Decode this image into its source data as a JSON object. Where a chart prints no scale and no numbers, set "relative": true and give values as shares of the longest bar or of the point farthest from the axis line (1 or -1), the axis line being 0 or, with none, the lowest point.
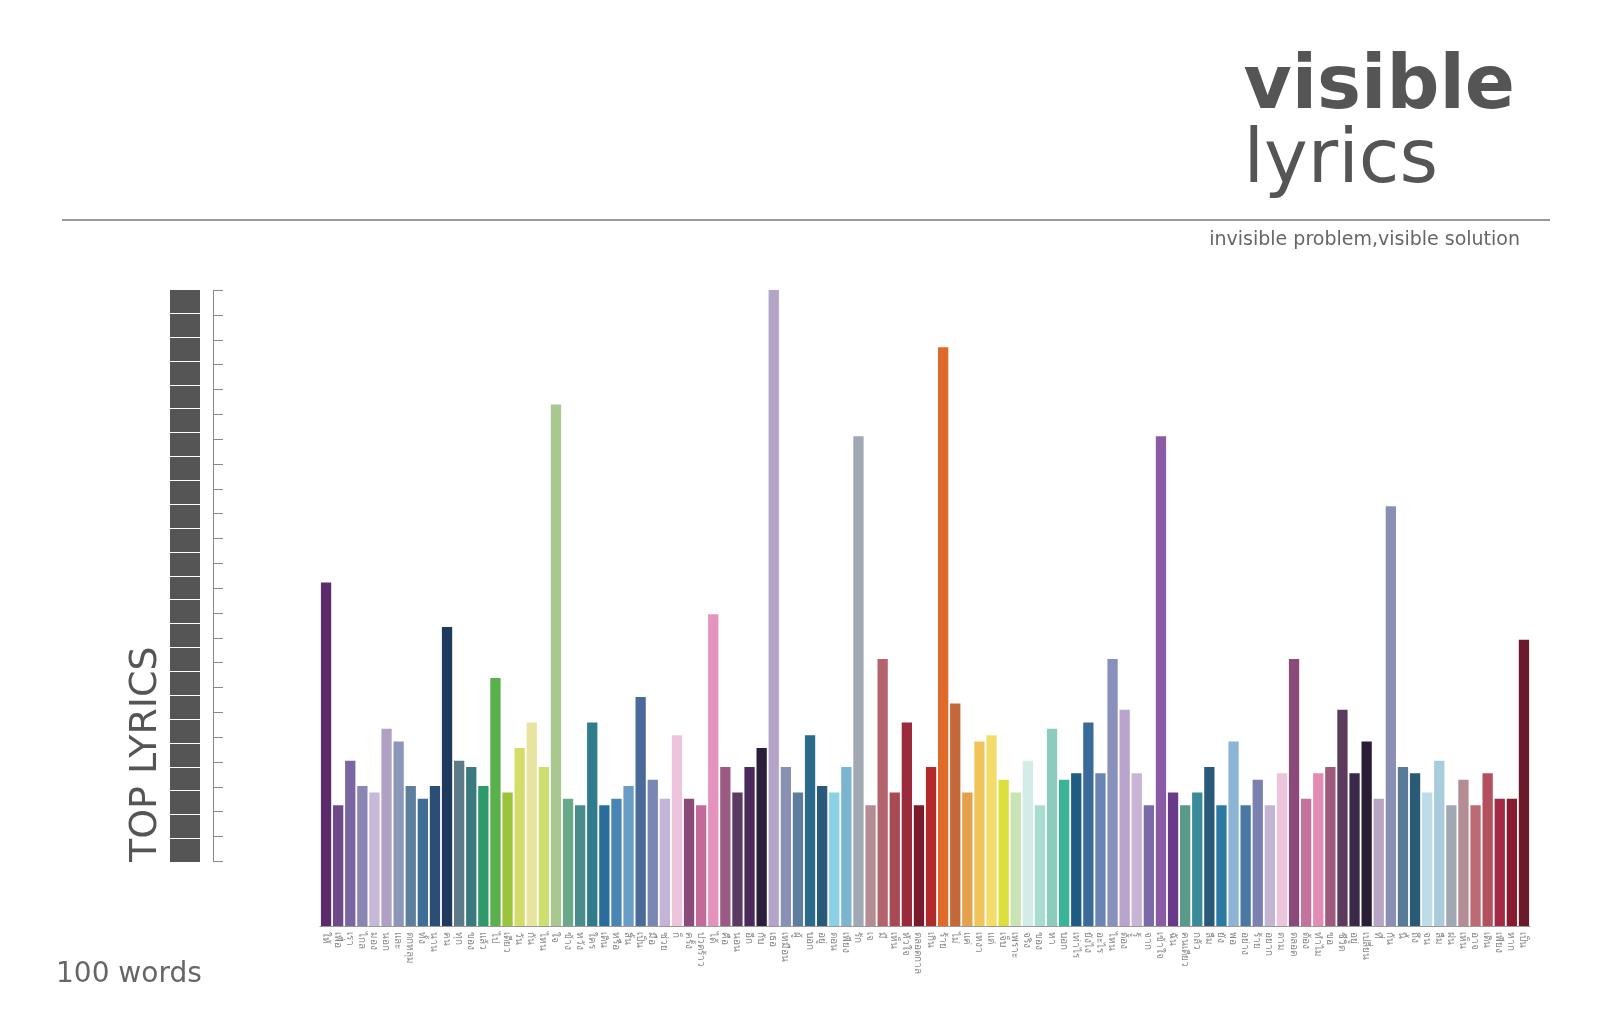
{
  "chart_data": {
    "type": "bar",
    "title": "visible",
    "subtitle": "lyrics",
    "relative": true,
    "annotations": [
      "invisible problem,visible solution",
      "TOP LYRICS",
      "100 words"
    ],
    "categories": [
      "ให้",
      "เพื่อ",
      "เรา",
      "ไกล",
      "มอง",
      "นอก",
      "และ",
      "ตกหลุม",
      "ทั้ง",
      "นาน",
      "คน",
      "ทุก",
      "ของ",
      "แล้ว",
      "ไป",
      "เดียว",
      "วัน",
      "กัน",
      "ไหน",
      "ใจ",
      "ข้าง",
      "หวัง",
      "ใคร",
      "เดิน",
      "หรือ",
      "สิ้น",
      "เป็น",
      "มือ",
      "ช่วย",
      "ก็",
      "ครั้ง",
      "ปวดร้าว",
      "ได้",
      "คือ",
      "นอน",
      "อีก",
      "กับ",
      "เธอ",
      "เหมือน",
      "ผู้",
      "บอก",
      "อยู่",
      "ตอน",
      "เพียง",
      "รัก",
      "เจ",
      "มี",
      "เห็น",
      "หัวใจ",
      "ตลอดกาล",
      "เกิน",
      "ร้าย",
      "ไม่",
      "แค่",
      "เหงา",
      "แต่",
      "เจ็บ",
      "เพราะ",
      "จริง",
      "ของ",
      "หา",
      "บอก",
      "เท่าไร",
      "ยังไง",
      "อะไร",
      "ไหน",
      "ต้อง",
      "รู้",
      "จาก",
      "เข้าใจ",
      "ฉัน",
      "คนเดียว",
      "กลัว",
      "ลืม",
      "ยัง",
      "พอ",
      "อย่าง",
      "ร้าย",
      "อยาก",
      "ตาม",
      "ตลอด",
      "ต้อง",
      "ทำไม",
      "ขอ",
      "ชีวิต",
      "อยู่",
      "เปลี่ยน",
      "ที่",
      "กัน",
      "นี้",
      "ถึง",
      "จน",
      "ลืม",
      "ฝน",
      "เห็น",
      "อาจ",
      "เดิน",
      "เพียง",
      "หาก",
      "เป็น"
    ],
    "values": [
      0.54,
      0.19,
      0.26,
      0.22,
      0.21,
      0.31,
      0.29,
      0.22,
      0.2,
      0.22,
      0.47,
      0.26,
      0.25,
      0.22,
      0.39,
      0.21,
      0.28,
      0.32,
      0.25,
      0.82,
      0.2,
      0.19,
      0.32,
      0.19,
      0.2,
      0.22,
      0.36,
      0.23,
      0.2,
      0.3,
      0.2,
      0.19,
      0.49,
      0.25,
      0.21,
      0.25,
      0.28,
      1,
      0.25,
      0.21,
      0.3,
      0.22,
      0.21,
      0.25,
      0.77,
      0.19,
      0.42,
      0.21,
      0.32,
      0.19,
      0.25,
      0.91,
      0.35,
      0.21,
      0.29,
      0.3,
      0.23,
      0.21,
      0.26,
      0.19,
      0.31,
      0.23,
      0.24,
      0.32,
      0.24,
      0.42,
      0.34,
      0.24,
      0.19,
      0.77,
      0.21,
      0.19,
      0.21,
      0.25,
      0.19,
      0.29,
      0.19,
      0.23,
      0.19,
      0.24,
      0.42,
      0.2,
      0.24,
      0.25,
      0.34,
      0.24,
      0.29,
      0.2,
      0.66,
      0.25,
      0.24,
      0.21,
      0.26,
      0.19,
      0.23,
      0.19,
      0.24,
      0.2,
      0.2,
      0.45
    ],
    "colors": [
      "#5a2a6a",
      "#6e4a8a",
      "#7a66a2",
      "#8a86b4",
      "#c8b8d8",
      "#b0a0c4",
      "#8c96b8",
      "#5e7e9e",
      "#3e6e96",
      "#2a4e76",
      "#1e3a5e",
      "#5c7a88",
      "#3a7a7e",
      "#2e9a6a",
      "#5ab04a",
      "#9ac43a",
      "#d4dc6a",
      "#e8e4a0",
      "#cce070",
      "#a8c890",
      "#6aa88a",
      "#4a8c8c",
      "#2e7c8c",
      "#2a6c9c",
      "#4a84b4",
      "#6a9cc8",
      "#4a6a9a",
      "#7a86b4",
      "#c4b4d8",
      "#ecc4dc",
      "#8c4a7a",
      "#c46a9a",
      "#e494bc",
      "#9a5a84",
      "#5a3a62",
      "#4a2a5a",
      "#2a1e3a",
      "#b4a4c8",
      "#8890b4",
      "#5c7ca0",
      "#2a6a8a",
      "#2a5a7a",
      "#8cd0e8",
      "#7ab4d0",
      "#a0a8b4",
      "#b48c94",
      "#b4646c",
      "#a84a54",
      "#9a2a3c",
      "#7a1a2a",
      "#b42a2a",
      "#e06a2a",
      "#c4683a",
      "#e4a04a",
      "#f0c45a",
      "#f4dc6a",
      "#dce03a",
      "#c8e4b4",
      "#d4ece8",
      "#a8dcd0",
      "#8cccbc",
      "#3ab496",
      "#1e5c84",
      "#3a6a9a",
      "#6a84b4",
      "#8890bc",
      "#b8a4cc",
      "#c8b4d4",
      "#7a6aa8",
      "#8a5aa4",
      "#6a3a8a",
      "#5a9a8a",
      "#3a8a9a",
      "#2a5a7a",
      "#2a7aa4",
      "#8cb4d4",
      "#4a78a4",
      "#7a80b0",
      "#c4b4d4",
      "#ecc4dc",
      "#8c4a7a",
      "#c4749c",
      "#e08cb4",
      "#9c5a7c",
      "#5c3a5c",
      "#3a2a4a",
      "#2a1e36",
      "#b8a4c4",
      "#8a90b4",
      "#5a7a9a",
      "#2a5a74",
      "#bcdce8",
      "#a8ccdc",
      "#a0a8b4",
      "#b48c94",
      "#bc6a74",
      "#b4505c",
      "#a42a44",
      "#8a1a30",
      "#6a1a2a"
    ]
  }
}
